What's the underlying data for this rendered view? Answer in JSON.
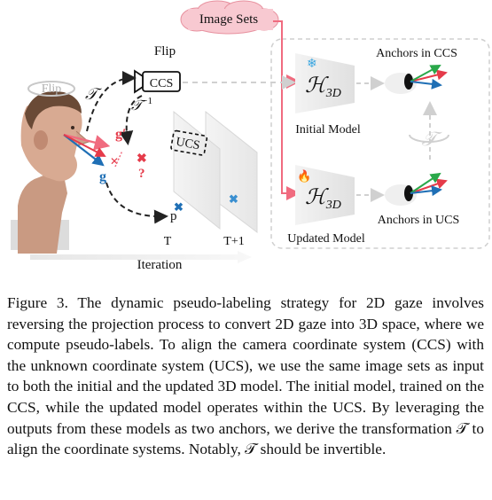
{
  "figure": {
    "image_sets_label": "Image Sets",
    "flip_label": "Flip",
    "flip_rotate_label": "Flip",
    "ccs_label": "CCS",
    "ucs_label": "UCS",
    "transform_symbol": "𝒯",
    "transform_inverse": "𝒯",
    "inverse_sup": "−1",
    "g_label": "g",
    "g_prime_label": "g′",
    "p_label": "p",
    "question_mark": "?",
    "h3d_symbol": "ℋ",
    "h3d_sub": "3D",
    "initial_model_label": "Initial Model",
    "updated_model_label": "Updated Model",
    "anchors_ccs_label": "Anchors in CCS",
    "anchors_ucs_label": "Anchors in UCS",
    "t_label": "T",
    "t1_label": "T+1",
    "iteration_label": "Iteration",
    "snowflake_icon": "❄",
    "fire_icon": "🔥",
    "colors": {
      "pink": "#f06b7f",
      "blue": "#1f6fb5",
      "red": "#e53b4a",
      "green": "#2aa84a",
      "cloud": "#f8c9d1",
      "panel_border": "#cfcfcf"
    }
  },
  "caption": {
    "text": "Figure 3. The dynamic pseudo-labeling strategy for 2D gaze involves reversing the projection process to convert 2D gaze into 3D space, where we compute pseudo-labels. To align the camera coordinate system (CCS) with the unknown coordinate system (UCS), we use the same image sets as input to both the initial and the updated 3D model. The initial model, trained on the CCS, while the updated model operates within the UCS. By leveraging the outputs from these models as two anchors, we derive the transformation 𝒯 to align the coordinate systems. Notably, 𝒯 should be invertible."
  }
}
